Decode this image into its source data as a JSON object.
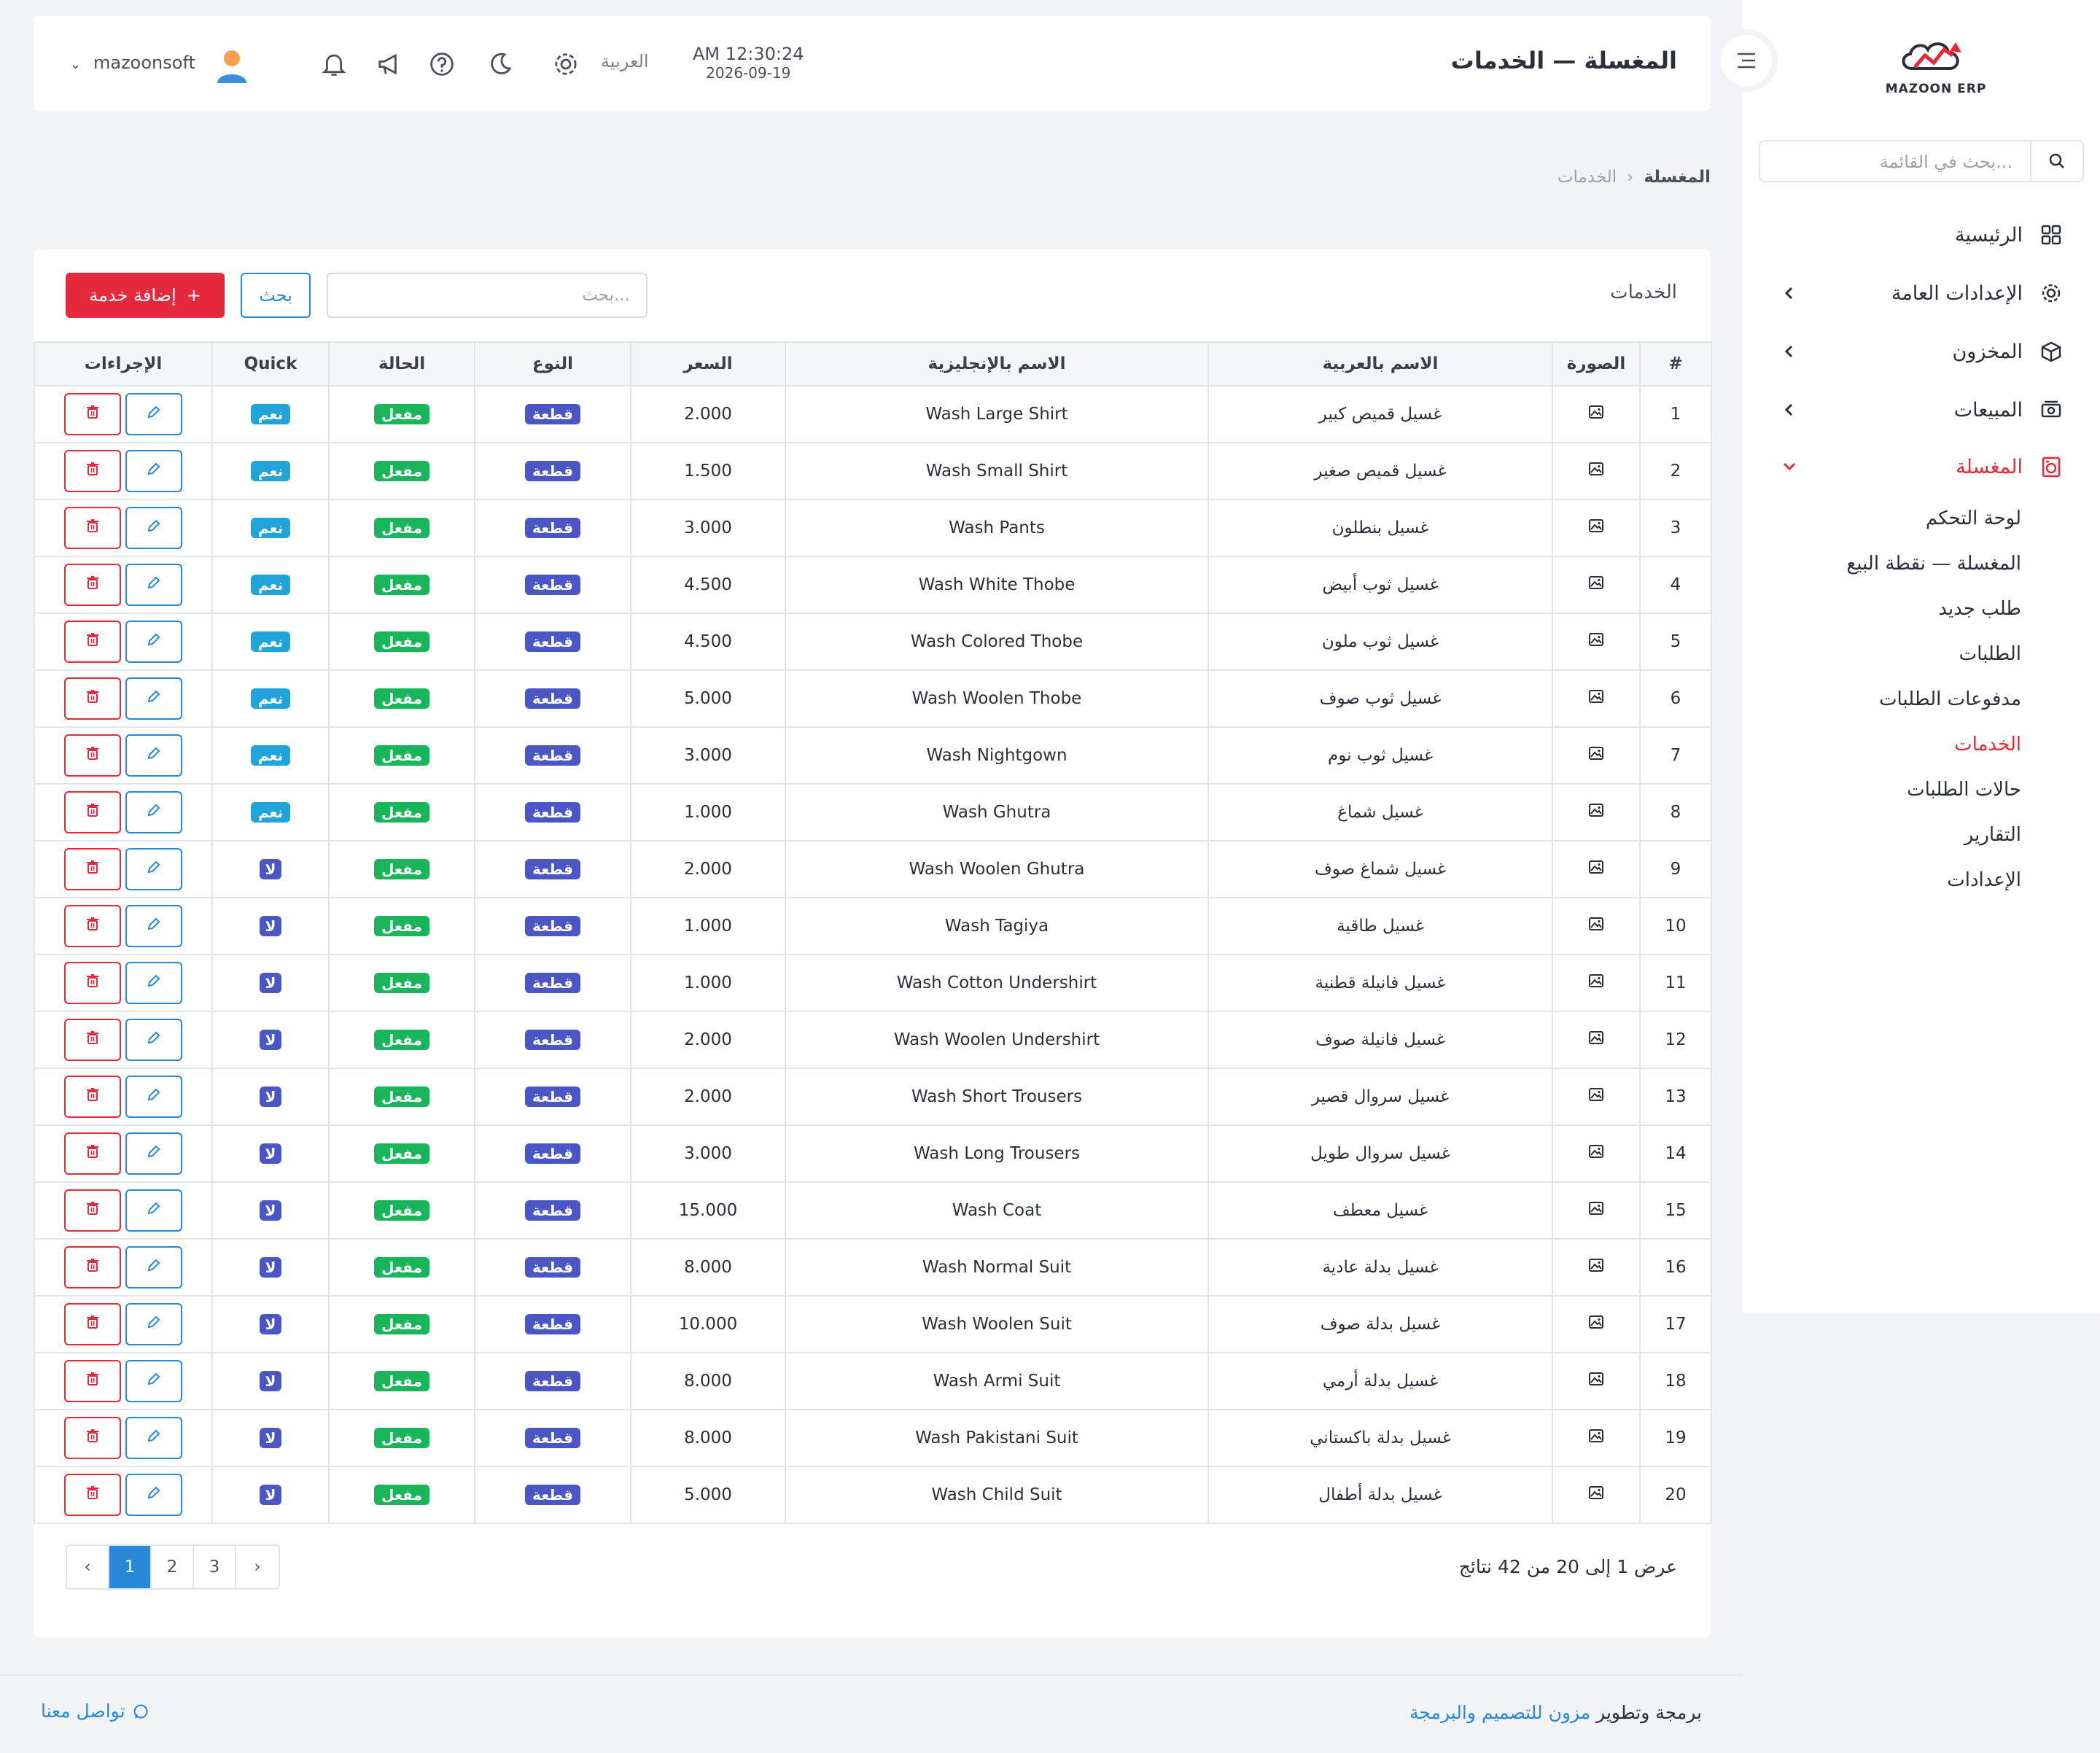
{
  "brand": {
    "name": "MAZOON ERP"
  },
  "sidebar": {
    "search_placeholder": "بحث في القائمة...",
    "items": [
      {
        "label": "الرئيسية",
        "icon": "grid-icon"
      },
      {
        "label": "الإعدادات العامة",
        "icon": "gear-icon"
      },
      {
        "label": "المخزون",
        "icon": "box-icon"
      },
      {
        "label": "المبيعات",
        "icon": "cash-icon"
      },
      {
        "label": "المغسلة",
        "icon": "laundry-icon"
      }
    ],
    "sub_items": [
      "لوحة التحكم",
      "المغسلة — نقطة البيع",
      "طلب جديد",
      "الطلبات",
      "مدفوعات الطلبات",
      "الخدمات",
      "حالات الطلبات",
      "التقارير",
      "الإعدادات"
    ]
  },
  "header": {
    "title": "المغسلة — الخدمات",
    "time": "AM 12:30:24",
    "date": "2026-09-19",
    "language": "العربية",
    "username": "mazoonsoft"
  },
  "breadcrumb": {
    "parent": "المغسلة",
    "current": "الخدمات"
  },
  "services": {
    "title": "الخدمات",
    "search_placeholder": "بحث...",
    "search_button": "بحث",
    "add_button": "إضافة خدمة",
    "columns": [
      "#",
      "الصورة",
      "الاسم بالعربية",
      "الاسم بالإنجليزية",
      "السعر",
      "النوع",
      "الحالة",
      "Quick",
      "الإجراءات"
    ],
    "rows": [
      {
        "n": "1",
        "ar": "غسيل قميص كبير",
        "en": "Wash Large Shirt",
        "price": "2.000",
        "type": "قطعة",
        "status": "مفعل",
        "quick": "نعم"
      },
      {
        "n": "2",
        "ar": "غسيل قميص صغير",
        "en": "Wash Small Shirt",
        "price": "1.500",
        "type": "قطعة",
        "status": "مفعل",
        "quick": "نعم"
      },
      {
        "n": "3",
        "ar": "غسيل بنطلون",
        "en": "Wash Pants",
        "price": "3.000",
        "type": "قطعة",
        "status": "مفعل",
        "quick": "نعم"
      },
      {
        "n": "4",
        "ar": "غسيل ثوب أبيض",
        "en": "Wash White Thobe",
        "price": "4.500",
        "type": "قطعة",
        "status": "مفعل",
        "quick": "نعم"
      },
      {
        "n": "5",
        "ar": "غسيل ثوب ملون",
        "en": "Wash Colored Thobe",
        "price": "4.500",
        "type": "قطعة",
        "status": "مفعل",
        "quick": "نعم"
      },
      {
        "n": "6",
        "ar": "غسيل ثوب صوف",
        "en": "Wash Woolen Thobe",
        "price": "5.000",
        "type": "قطعة",
        "status": "مفعل",
        "quick": "نعم"
      },
      {
        "n": "7",
        "ar": "غسيل ثوب نوم",
        "en": "Wash Nightgown",
        "price": "3.000",
        "type": "قطعة",
        "status": "مفعل",
        "quick": "نعم"
      },
      {
        "n": "8",
        "ar": "غسيل شماغ",
        "en": "Wash Ghutra",
        "price": "1.000",
        "type": "قطعة",
        "status": "مفعل",
        "quick": "نعم"
      },
      {
        "n": "9",
        "ar": "غسيل شماغ صوف",
        "en": "Wash Woolen Ghutra",
        "price": "2.000",
        "type": "قطعة",
        "status": "مفعل",
        "quick": "لا"
      },
      {
        "n": "10",
        "ar": "غسيل طاقية",
        "en": "Wash Tagiya",
        "price": "1.000",
        "type": "قطعة",
        "status": "مفعل",
        "quick": "لا"
      },
      {
        "n": "11",
        "ar": "غسيل فانيلة قطنية",
        "en": "Wash Cotton Undershirt",
        "price": "1.000",
        "type": "قطعة",
        "status": "مفعل",
        "quick": "لا"
      },
      {
        "n": "12",
        "ar": "غسيل فانيلة صوف",
        "en": "Wash Woolen Undershirt",
        "price": "2.000",
        "type": "قطعة",
        "status": "مفعل",
        "quick": "لا"
      },
      {
        "n": "13",
        "ar": "غسيل سروال قصير",
        "en": "Wash Short Trousers",
        "price": "2.000",
        "type": "قطعة",
        "status": "مفعل",
        "quick": "لا"
      },
      {
        "n": "14",
        "ar": "غسيل سروال طويل",
        "en": "Wash Long Trousers",
        "price": "3.000",
        "type": "قطعة",
        "status": "مفعل",
        "quick": "لا"
      },
      {
        "n": "15",
        "ar": "غسيل معطف",
        "en": "Wash Coat",
        "price": "15.000",
        "type": "قطعة",
        "status": "مفعل",
        "quick": "لا"
      },
      {
        "n": "16",
        "ar": "غسيل بدلة عادية",
        "en": "Wash Normal Suit",
        "price": "8.000",
        "type": "قطعة",
        "status": "مفعل",
        "quick": "لا"
      },
      {
        "n": "17",
        "ar": "غسيل بدلة صوف",
        "en": "Wash Woolen Suit",
        "price": "10.000",
        "type": "قطعة",
        "status": "مفعل",
        "quick": "لا"
      },
      {
        "n": "18",
        "ar": "غسيل بدلة أرمي",
        "en": "Wash Armi Suit",
        "price": "8.000",
        "type": "قطعة",
        "status": "مفعل",
        "quick": "لا"
      },
      {
        "n": "19",
        "ar": "غسيل بدلة باكستاني",
        "en": "Wash Pakistani Suit",
        "price": "8.000",
        "type": "قطعة",
        "status": "مفعل",
        "quick": "لا"
      },
      {
        "n": "20",
        "ar": "غسيل بدلة أطفال",
        "en": "Wash Child Suit",
        "price": "5.000",
        "type": "قطعة",
        "status": "مفعل",
        "quick": "لا"
      }
    ],
    "summary": "عرض 1 إلى 20 من 42 نتائج",
    "pages": [
      "‹",
      "1",
      "2",
      "3",
      "›"
    ]
  },
  "footer": {
    "credit_prefix": "برمجة وتطوير",
    "credit_link": "مزون للتصميم والبرمجة",
    "contact": "تواصل معنا"
  },
  "colors": {
    "accent": "#e6293a",
    "primary": "#2788d8",
    "success": "#18b55a",
    "indigo": "#4a56c4"
  }
}
